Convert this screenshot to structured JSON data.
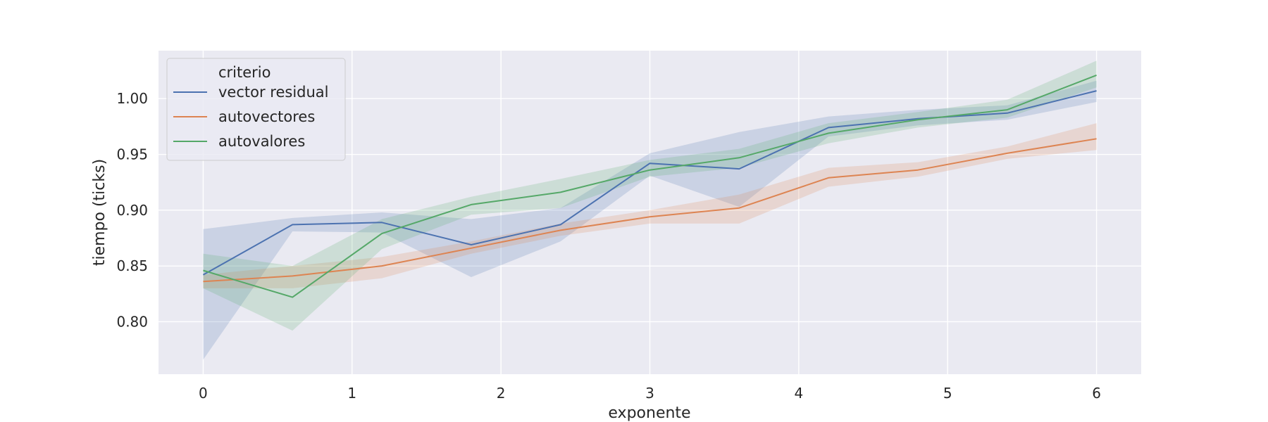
{
  "chart_data": {
    "type": "line",
    "xlabel": "exponente",
    "ylabel": "tiempo (ticks)",
    "xlim": [
      -0.3,
      6.3
    ],
    "ylim": [
      0.753,
      1.043
    ],
    "xticks": [
      0,
      1,
      2,
      3,
      4,
      5,
      6
    ],
    "yticks": [
      0.8,
      0.85,
      0.9,
      0.95,
      1.0
    ],
    "ytick_labels": [
      "0.80",
      "0.85",
      "0.90",
      "0.95",
      "1.00"
    ],
    "grid": true,
    "background": "#eaeaf2",
    "legend": {
      "title": "criterio",
      "placement": "top-left"
    },
    "x": [
      0,
      0.6,
      1.2,
      1.8,
      2.4,
      3.0,
      3.6,
      4.2,
      4.8,
      5.4,
      6.0
    ],
    "series": [
      {
        "name": "vector residual",
        "color": "#4c72b0",
        "values": [
          0.842,
          0.887,
          0.889,
          0.869,
          0.887,
          0.942,
          0.937,
          0.974,
          0.982,
          0.987,
          1.007
        ],
        "lower": [
          0.766,
          0.881,
          0.88,
          0.84,
          0.872,
          0.931,
          0.903,
          0.966,
          0.976,
          0.981,
          0.997
        ],
        "upper": [
          0.883,
          0.893,
          0.898,
          0.892,
          0.902,
          0.951,
          0.97,
          0.984,
          0.99,
          0.994,
          1.016
        ]
      },
      {
        "name": "autovectores",
        "color": "#dd8452",
        "values": [
          0.836,
          0.841,
          0.85,
          0.866,
          0.882,
          0.894,
          0.902,
          0.929,
          0.936,
          0.951,
          0.964
        ],
        "lower": [
          0.83,
          0.83,
          0.839,
          0.861,
          0.877,
          0.888,
          0.888,
          0.921,
          0.93,
          0.946,
          0.954
        ],
        "upper": [
          0.842,
          0.85,
          0.858,
          0.872,
          0.888,
          0.9,
          0.914,
          0.938,
          0.943,
          0.957,
          0.978
        ]
      },
      {
        "name": "autovalores",
        "color": "#55a868",
        "values": [
          0.846,
          0.822,
          0.879,
          0.905,
          0.916,
          0.936,
          0.947,
          0.969,
          0.981,
          0.99,
          1.021
        ],
        "lower": [
          0.83,
          0.792,
          0.865,
          0.896,
          0.902,
          0.93,
          0.938,
          0.96,
          0.974,
          0.983,
          1.01
        ],
        "upper": [
          0.861,
          0.85,
          0.892,
          0.912,
          0.928,
          0.945,
          0.955,
          0.978,
          0.988,
          0.999,
          1.034
        ]
      }
    ]
  }
}
